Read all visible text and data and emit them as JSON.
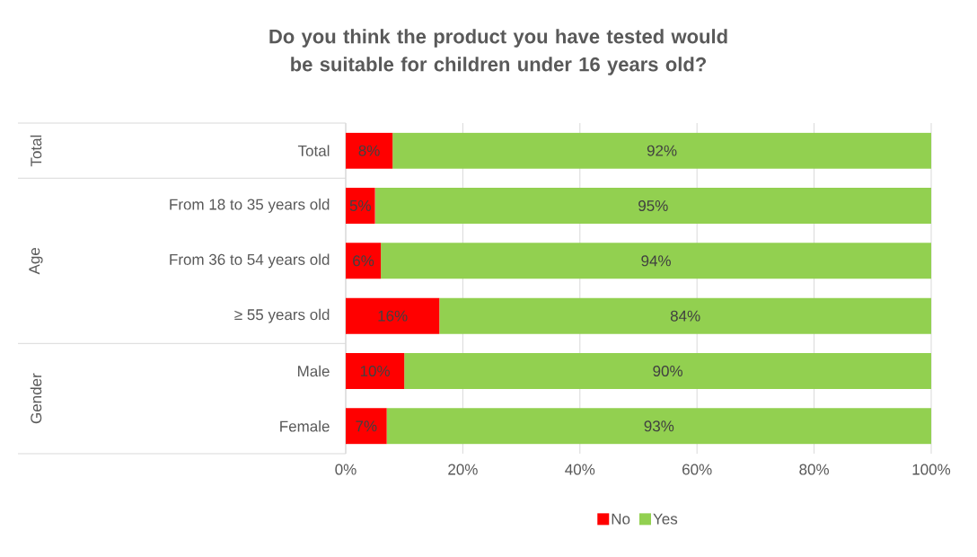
{
  "chart_data": {
    "type": "bar",
    "orientation": "horizontal",
    "stacked": true,
    "title": "Do you think the product you have tested would be suitable for children under 16 years old?",
    "categories": [
      "Total",
      "From 18 to 35 years old",
      "From 36 to 54 years old",
      "≥ 55 years old",
      "Male",
      "Female"
    ],
    "series": [
      {
        "name": "No",
        "color": "#ff0000",
        "values": [
          8,
          5,
          6,
          16,
          10,
          7
        ],
        "value_labels": [
          "8%",
          "5%",
          "6%",
          "16%",
          "10%",
          "7%"
        ]
      },
      {
        "name": "Yes",
        "color": "#92d050",
        "values": [
          92,
          95,
          94,
          84,
          90,
          93
        ],
        "value_labels": [
          "92%",
          "95%",
          "94%",
          "84%",
          "90%",
          "93%"
        ]
      }
    ],
    "xlim": [
      0,
      100
    ],
    "xticks": [
      {
        "value": 0,
        "label": "0%"
      },
      {
        "value": 20,
        "label": "20%"
      },
      {
        "value": 40,
        "label": "40%"
      },
      {
        "value": 60,
        "label": "60%"
      },
      {
        "value": 80,
        "label": "80%"
      },
      {
        "value": 100,
        "label": "100%"
      }
    ],
    "grid": "x",
    "legend": "bottom",
    "annotations": [
      "Total",
      "Age",
      "Gender"
    ]
  }
}
